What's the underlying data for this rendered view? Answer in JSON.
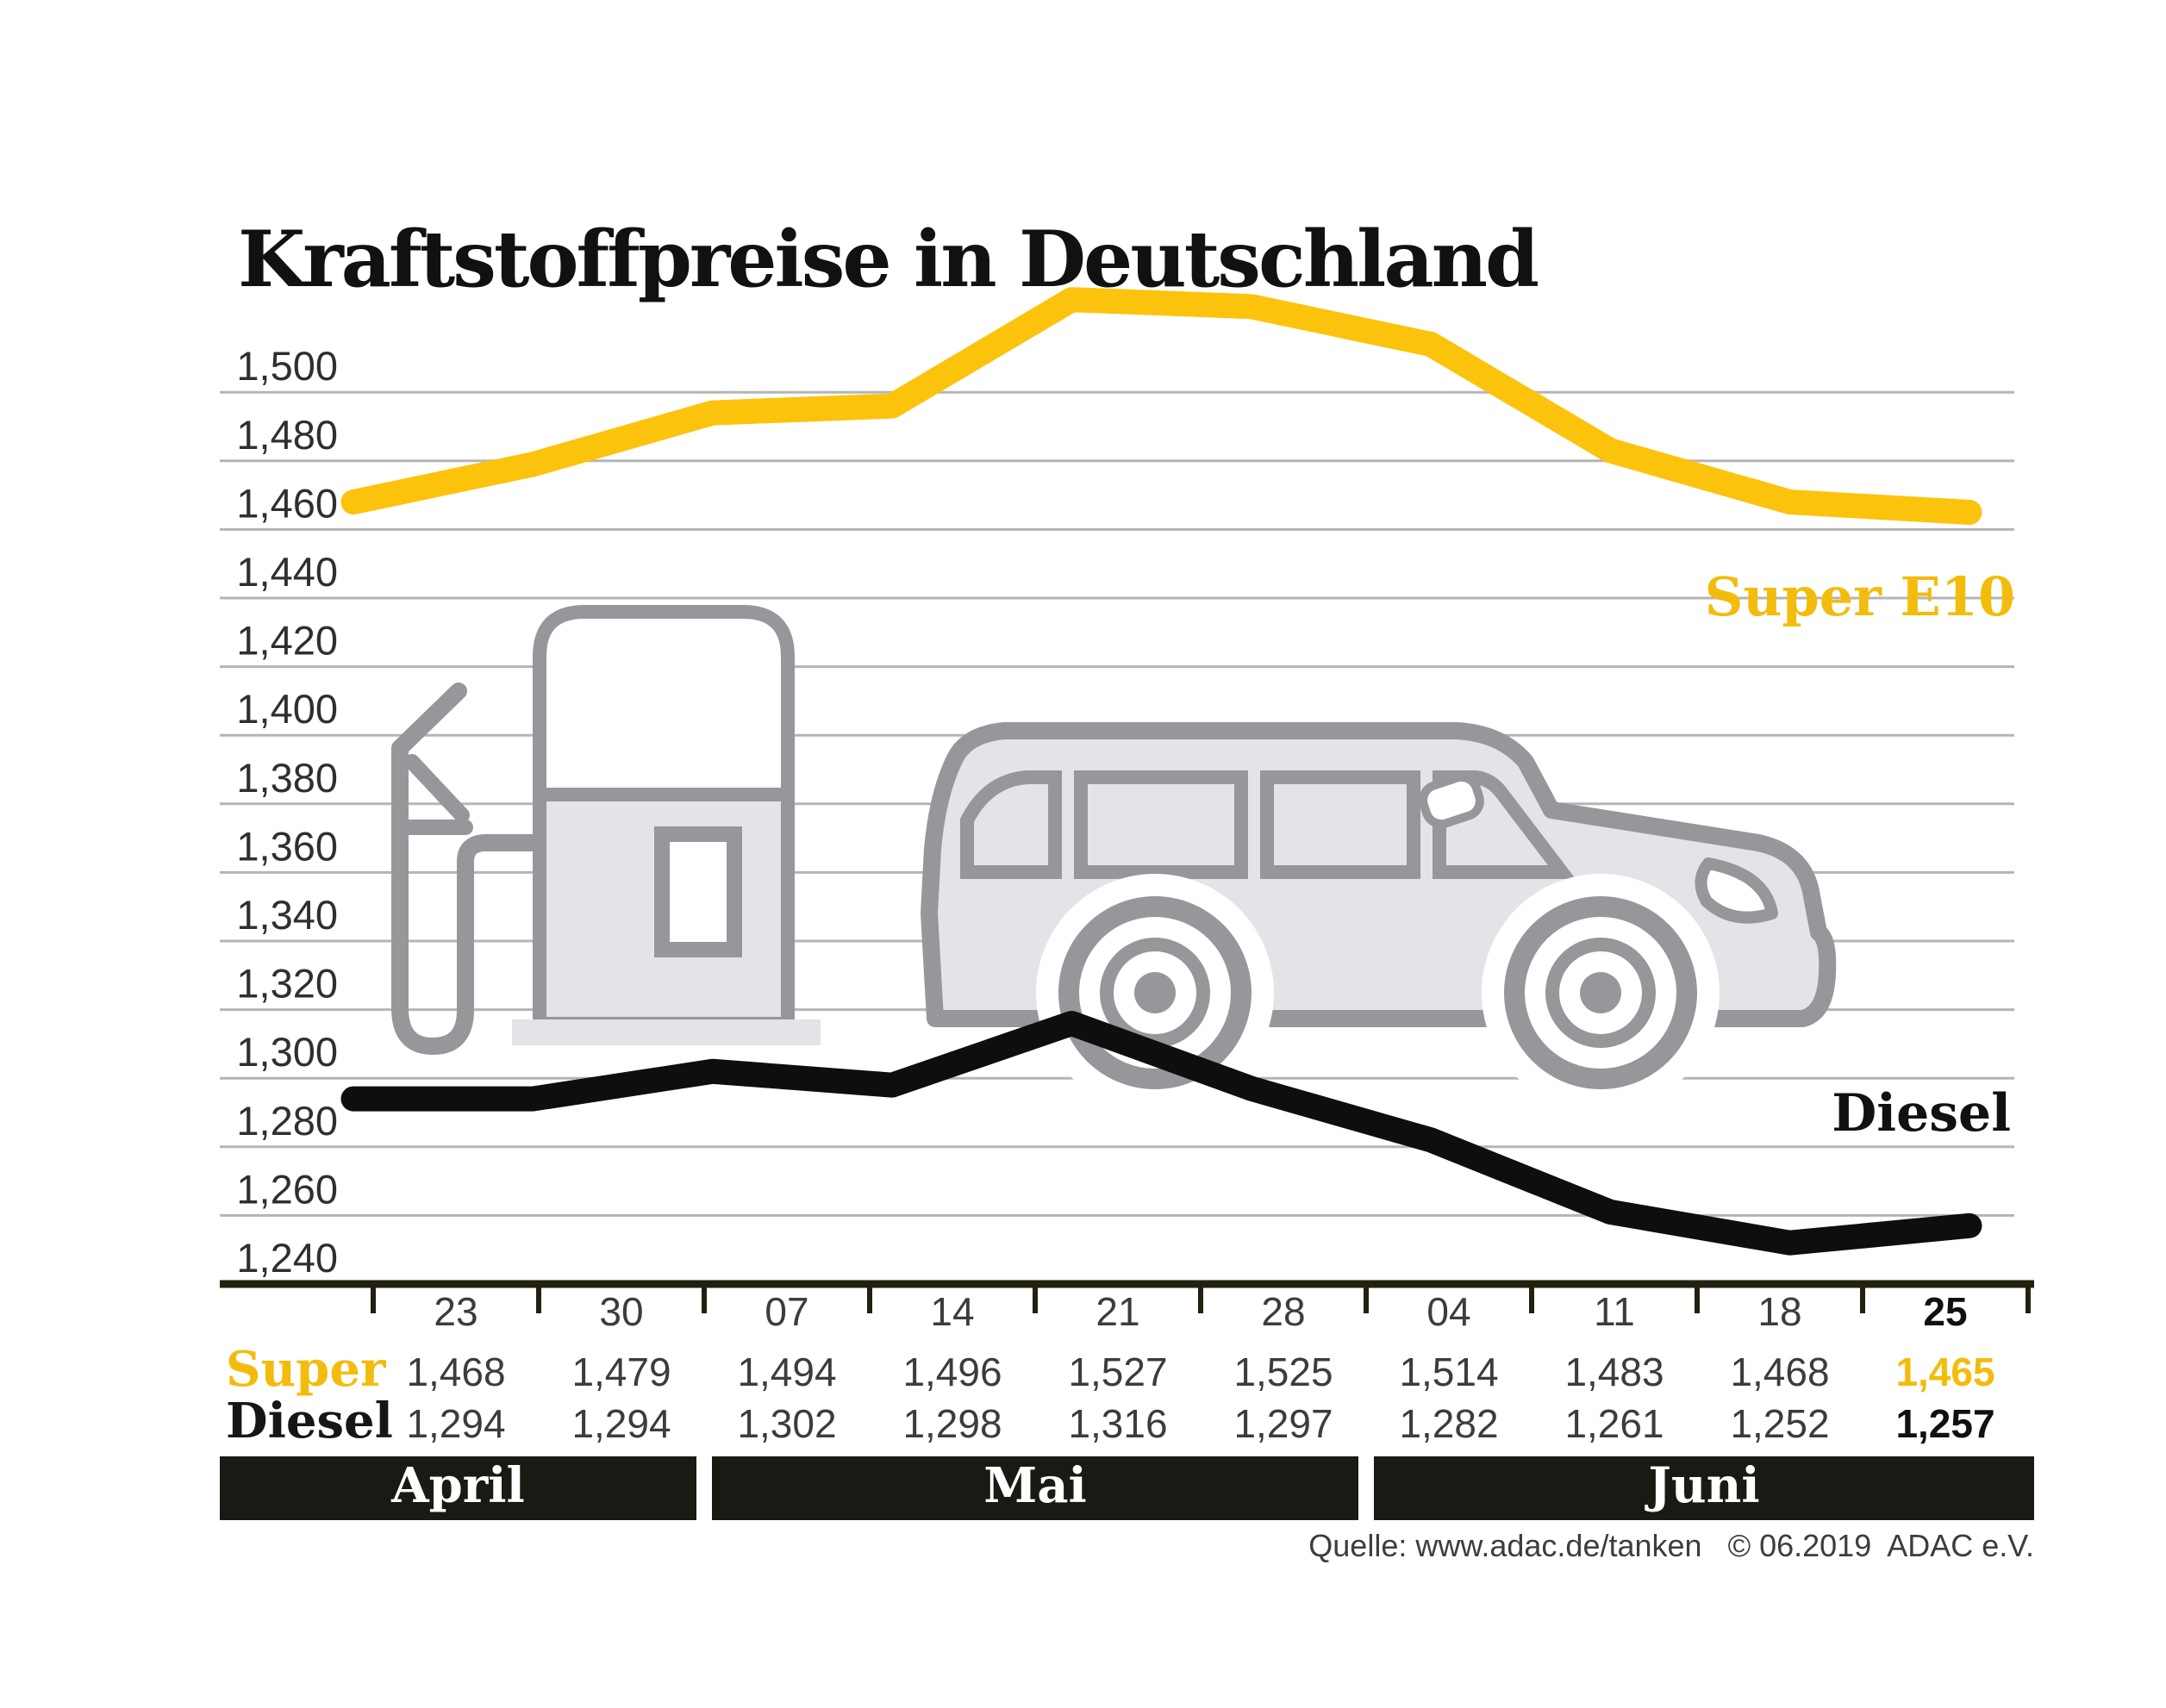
{
  "title": "Kraftstoffpreise in Deutschland",
  "source_note": "Quelle: www.adac.de/tanken   © 06.2019  ADAC e.V.",
  "colors": {
    "accent_line": "#fcc30d",
    "accent_text": "#f3bc0c",
    "diesel_line": "#0e0e0e",
    "grid": "#b5b5b5",
    "axis": "#22210f",
    "band_bg": "#1a1a14",
    "band_text": "#ffffff",
    "text_dark": "#111111",
    "text_labels": "#2f2f2f",
    "text_values": "#3c3c3c",
    "source_text": "#3d3d3d",
    "icon_stroke": "#97969a",
    "icon_fill": "#e3e4e7"
  },
  "chart_data": {
    "type": "line",
    "title": "Kraftstoffpreise in Deutschland",
    "x_categories": [
      "23",
      "30",
      "07",
      "14",
      "21",
      "28",
      "04",
      "11",
      "18",
      "25"
    ],
    "month_groups": [
      {
        "label": "April",
        "cols": 2
      },
      {
        "label": "Mai",
        "cols": 4
      },
      {
        "label": "Juni",
        "cols": 4
      }
    ],
    "y_ticks": [
      "1,500",
      "1,480",
      "1,460",
      "1,440",
      "1,420",
      "1,400",
      "1,380",
      "1,360",
      "1,340",
      "1,320",
      "1,300",
      "1,280",
      "1,260",
      "1,240"
    ],
    "ylim": [
      1240,
      1540
    ],
    "grid": "horizontal",
    "legend_position": "inline-right",
    "series": [
      {
        "name": "Super E10",
        "table_label": "Super",
        "color_key": "accent",
        "values": [
          "1,468",
          "1,479",
          "1,494",
          "1,496",
          "1,527",
          "1,525",
          "1,514",
          "1,483",
          "1,468",
          "1,465"
        ]
      },
      {
        "name": "Diesel",
        "table_label": "Diesel",
        "color_key": "dark",
        "values": [
          "1,294",
          "1,294",
          "1,302",
          "1,298",
          "1,316",
          "1,297",
          "1,282",
          "1,261",
          "1,252",
          "1,257"
        ]
      }
    ],
    "highlight_last_column": true
  }
}
